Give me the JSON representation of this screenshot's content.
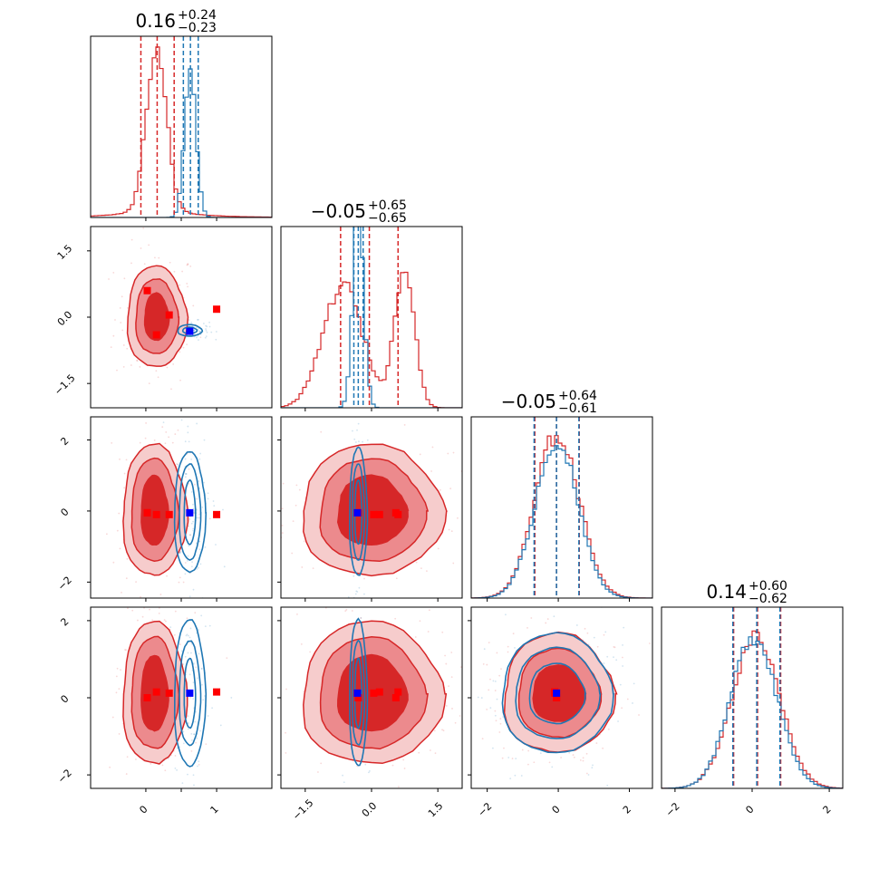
{
  "colors": {
    "red": "#d62728",
    "red_fill_1": "#f6cccc",
    "red_fill_2": "#ec8a8d",
    "red_fill_3": "#d62728",
    "blue": "#1f77b4",
    "marker_red": "#ff0000",
    "marker_blue": "#0000ff"
  },
  "chart_data": {
    "type": "corner",
    "n_params": 4,
    "titles": [
      {
        "value": "0.16",
        "plus": "+0.24",
        "minus": "−0.23"
      },
      {
        "value": "−0.05",
        "plus": "+0.65",
        "minus": "−0.65"
      },
      {
        "value": "−0.05",
        "plus": "+0.64",
        "minus": "−0.61"
      },
      {
        "value": "0.14",
        "plus": "+0.60",
        "minus": "−0.62"
      }
    ],
    "ranges": [
      [
        -0.78,
        1.78
      ],
      [
        -2.05,
        2.05
      ],
      [
        -2.45,
        2.65
      ],
      [
        -2.35,
        2.35
      ]
    ],
    "ticks": [
      {
        "values": [
          0,
          0.5,
          1
        ],
        "labels": [
          "0",
          "",
          "1"
        ]
      },
      {
        "values": [
          -1.5,
          0,
          1.5
        ],
        "labels": [
          "−1.5",
          "0.0",
          "1.5"
        ]
      },
      {
        "values": [
          -2,
          0,
          2
        ],
        "labels": [
          "−2",
          "0",
          "2"
        ]
      },
      {
        "values": [
          -2,
          0,
          2
        ],
        "labels": [
          "−2",
          "0",
          "2"
        ]
      }
    ],
    "diag": [
      {
        "red": {
          "peaks": [
            [
              0.15,
              1.0,
              0.14
            ]
          ],
          "tail": 0.06,
          "dashed": [
            -0.07,
            0.16,
            0.4
          ]
        },
        "blue": {
          "peaks": [
            [
              0.63,
              0.92,
              0.08
            ]
          ],
          "tail": 0.0,
          "dashed": [
            0.53,
            0.63,
            0.74
          ]
        },
        "zero_pad": [
          0.1,
          0.55
        ]
      },
      {
        "red": {
          "peaks": [
            [
              -0.65,
              0.75,
              0.45
            ],
            [
              0.75,
              0.88,
              0.22
            ]
          ],
          "tail": 0.0,
          "dashed": [
            -0.7,
            -0.05,
            0.6
          ]
        },
        "blue": {
          "peaks": [
            [
              -0.3,
              1.3,
              0.12
            ]
          ],
          "tail": 0.0,
          "dashed": [
            -0.4,
            -0.3,
            -0.19
          ]
        },
        "zero_pad": [
          0.0,
          0.0
        ]
      },
      {
        "red": {
          "peaks": [
            [
              -0.03,
              1.0,
              0.62
            ]
          ],
          "tail": 0.0,
          "dashed": [
            -0.66,
            -0.05,
            0.59
          ]
        },
        "blue": {
          "peaks": [
            [
              -0.05,
              0.96,
              0.6
            ]
          ],
          "tail": 0.0,
          "dashed": [
            -0.68,
            -0.05,
            0.58
          ]
        },
        "zero_pad": [
          0.0,
          0.0
        ]
      },
      {
        "red": {
          "peaks": [
            [
              0.1,
              0.92,
              0.62
            ]
          ],
          "tail": 0.0,
          "dashed": [
            -0.48,
            0.14,
            0.74
          ]
        },
        "blue": {
          "peaks": [
            [
              0.05,
              0.93,
              0.6
            ]
          ],
          "tail": 0.0,
          "dashed": [
            -0.5,
            0.12,
            0.72
          ]
        },
        "zero_pad": [
          0.0,
          0.0
        ]
      }
    ],
    "red_blobs": {
      "1-0": {
        "cx": 0.15,
        "cy": 0.0,
        "rx": [
          0.18,
          0.3,
          0.42
        ],
        "ry": [
          0.55,
          0.85,
          1.15
        ],
        "skew": 0.0
      },
      "2-0": {
        "cx": 0.12,
        "cy": 0.0,
        "rx": [
          0.2,
          0.33,
          0.45
        ],
        "ry": [
          1.0,
          1.45,
          1.85
        ]
      },
      "2-1": {
        "cx": 0.0,
        "cy": 0.0,
        "rx": [
          0.8,
          1.2,
          1.6
        ],
        "ry": [
          1.0,
          1.45,
          1.85
        ]
      },
      "3-0": {
        "cx": 0.12,
        "cy": 0.1,
        "rx": [
          0.2,
          0.33,
          0.45
        ],
        "ry": [
          1.0,
          1.45,
          1.85
        ]
      },
      "3-1": {
        "cx": 0.0,
        "cy": 0.1,
        "rx": [
          0.8,
          1.2,
          1.6
        ],
        "ry": [
          1.0,
          1.45,
          1.85
        ]
      },
      "3-2": {
        "cx": 0.0,
        "cy": 0.1,
        "rx": [
          0.75,
          1.15,
          1.55
        ],
        "ry": [
          0.75,
          1.15,
          1.55
        ]
      }
    },
    "blue_blobs": {
      "1-0": {
        "cx": 0.62,
        "cy": -0.3,
        "rx": [
          0.1,
          0.17
        ],
        "ry": [
          0.07,
          0.13
        ]
      },
      "2-0": {
        "cx": 0.62,
        "cy": -0.05,
        "rx": [
          0.08,
          0.15,
          0.22
        ],
        "ry": [
          0.9,
          1.35,
          1.7
        ]
      },
      "2-1": {
        "cx": -0.3,
        "cy": -0.05,
        "rx": [
          0.08,
          0.14,
          0.2
        ],
        "ry": [
          0.9,
          1.35,
          1.8
        ]
      },
      "3-0": {
        "cx": 0.62,
        "cy": 0.1,
        "rx": [
          0.08,
          0.15,
          0.22
        ],
        "ry": [
          0.9,
          1.35,
          1.9
        ]
      },
      "3-1": {
        "cx": -0.3,
        "cy": 0.1,
        "rx": [
          0.08,
          0.14,
          0.2
        ],
        "ry": [
          0.9,
          1.35,
          1.9
        ]
      },
      "3-2": {
        "cx": -0.05,
        "cy": 0.1,
        "rx": [
          0.78,
          1.18,
          1.55
        ],
        "ry": [
          0.78,
          1.18,
          1.55
        ]
      }
    },
    "red_markers": [
      {
        "p": [
          0.02,
          -0.3,
          -0.05,
          0.0
        ]
      },
      {
        "p": [
          0.33,
          0.05,
          -0.1,
          0.12
        ]
      },
      {
        "p": [
          0.15,
          0.18,
          -0.1,
          0.15
        ]
      },
      {
        "p": [
          1.0,
          0.6,
          -0.1,
          0.15
        ]
      },
      {
        "p": [
          0.02,
          0.55,
          -0.05,
          0.0
        ]
      }
    ],
    "red_markers_10": [
      [
        0.02,
        0.6
      ],
      [
        0.33,
        0.05
      ],
      [
        0.15,
        -0.4
      ],
      [
        1.0,
        0.18
      ]
    ],
    "blue_marker": [
      0.62,
      -0.32,
      -0.05,
      0.12
    ]
  }
}
